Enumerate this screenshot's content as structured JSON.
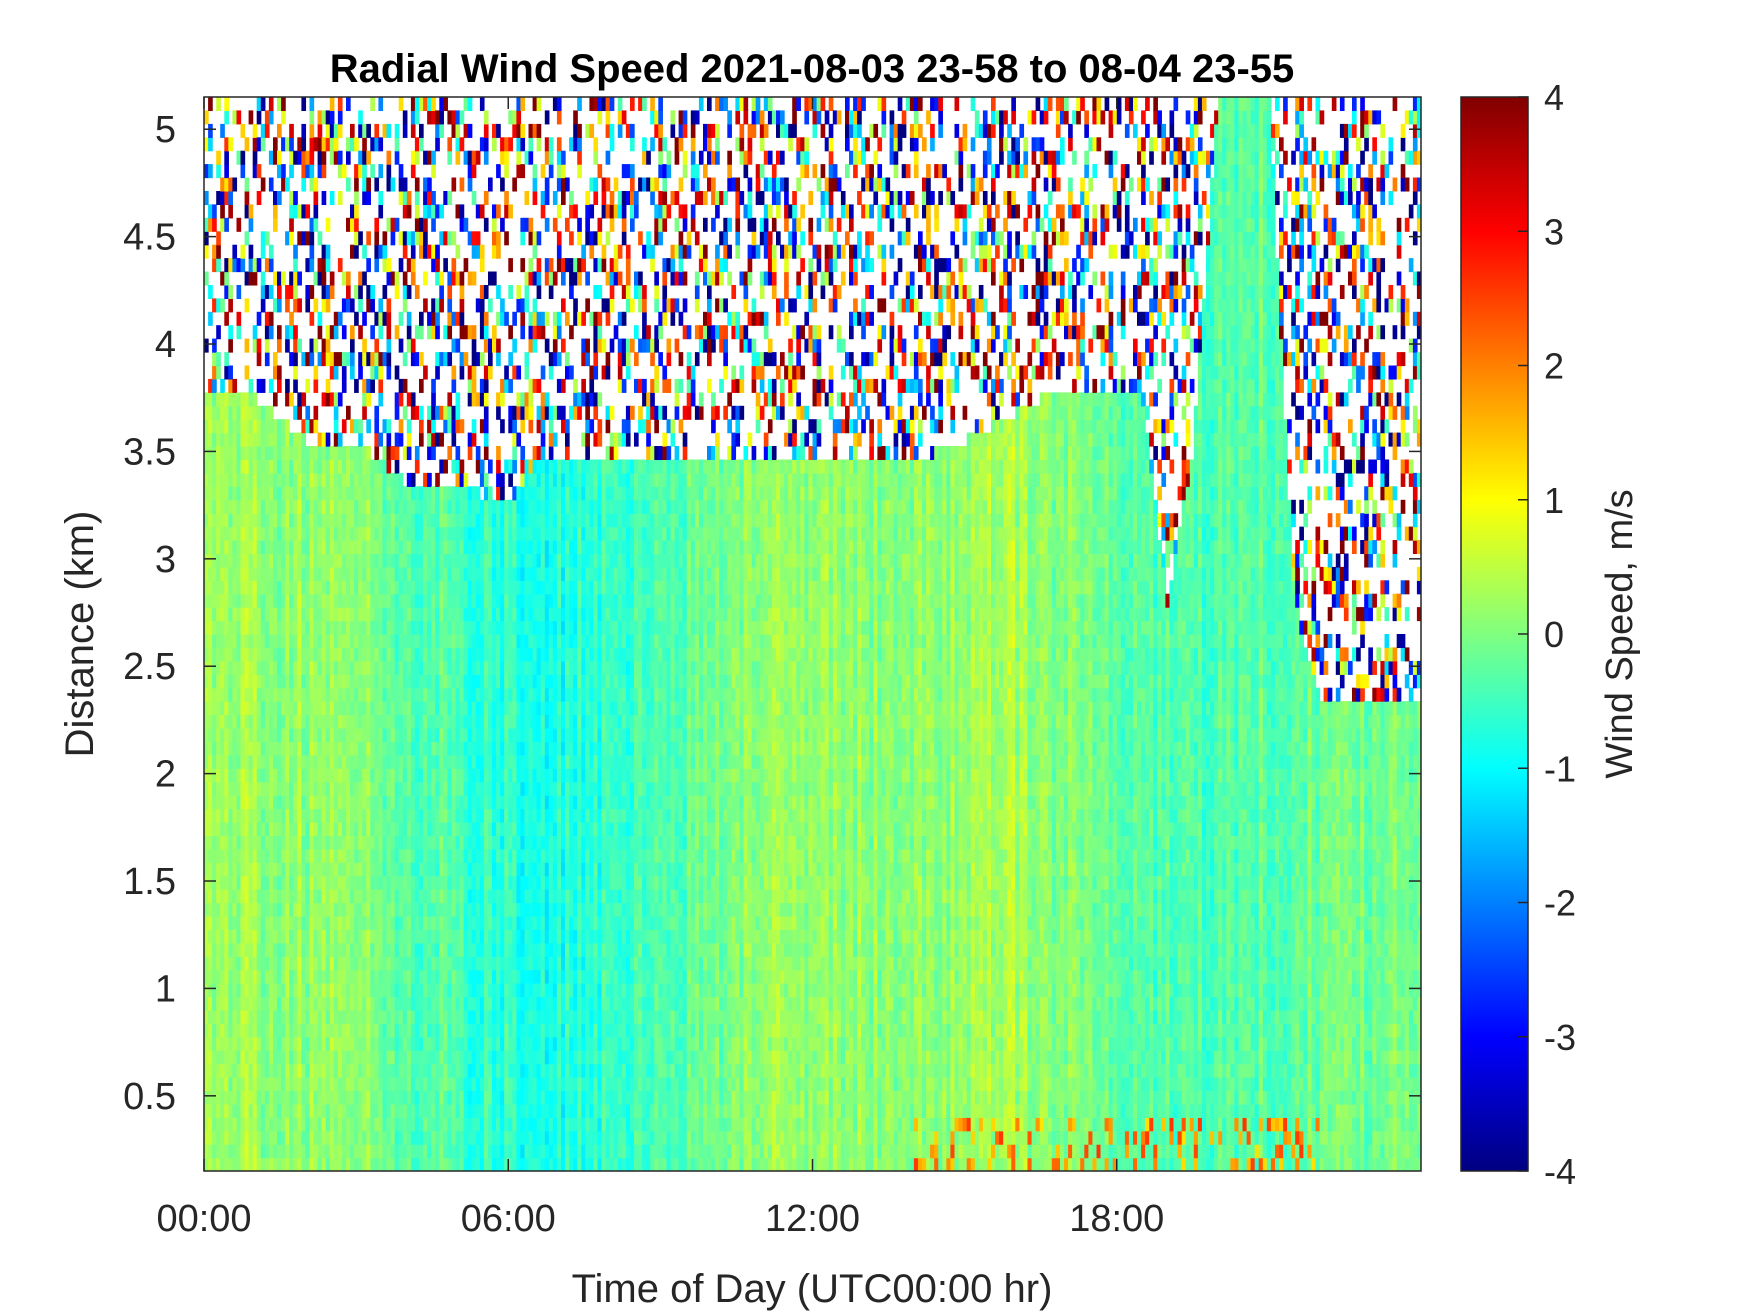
{
  "chart_data": {
    "type": "heatmap",
    "title": "Radial Wind Speed 2021-08-03 23-58 to 08-04 23-55",
    "xlabel": "Time of Day (UTC00:00 hr)",
    "ylabel": "Distance (km)",
    "colorbar_label": "Wind Speed, m/s",
    "colormap": "jet",
    "x_unit": "hours",
    "xlim": [
      0,
      24
    ],
    "ylim": [
      0.15,
      5.15
    ],
    "clim": [
      -4,
      4
    ],
    "x_ticks": [
      0,
      6,
      12,
      18
    ],
    "x_tick_labels": [
      "00:00",
      "06:00",
      "12:00",
      "18:00"
    ],
    "y_ticks": [
      0.5,
      1,
      1.5,
      2,
      2.5,
      3,
      3.5,
      4,
      4.5,
      5
    ],
    "y_tick_labels": [
      "0.5",
      "1",
      "1.5",
      "2",
      "2.5",
      "3",
      "3.5",
      "4",
      "4.5",
      "5"
    ],
    "c_ticks": [
      -4,
      -3,
      -2,
      -1,
      0,
      1,
      2,
      3,
      4
    ],
    "c_tick_labels": [
      "-4",
      "-3",
      "-2",
      "-1",
      "0",
      "1",
      "2",
      "3",
      "4"
    ],
    "valid_data_top_km": [
      {
        "t": 0.0,
        "top": 3.75
      },
      {
        "t": 1.0,
        "top": 3.75
      },
      {
        "t": 2.0,
        "top": 3.55
      },
      {
        "t": 3.0,
        "top": 3.55
      },
      {
        "t": 4.0,
        "top": 3.35
      },
      {
        "t": 5.0,
        "top": 3.35
      },
      {
        "t": 6.0,
        "top": 3.25
      },
      {
        "t": 6.5,
        "top": 3.45
      },
      {
        "t": 9.0,
        "top": 3.45
      },
      {
        "t": 12.0,
        "top": 3.45
      },
      {
        "t": 14.0,
        "top": 3.45
      },
      {
        "t": 15.0,
        "top": 3.55
      },
      {
        "t": 16.5,
        "top": 3.75
      },
      {
        "t": 18.5,
        "top": 3.75
      },
      {
        "t": 19.0,
        "top": 2.8
      },
      {
        "t": 19.5,
        "top": 3.5
      },
      {
        "t": 20.0,
        "top": 5.15
      },
      {
        "t": 21.0,
        "top": 5.15
      },
      {
        "t": 21.5,
        "top": 2.8
      },
      {
        "t": 22.0,
        "top": 2.35
      },
      {
        "t": 24.0,
        "top": 2.35
      }
    ],
    "mean_wind_by_time_ms": [
      {
        "t": 0,
        "v": 0.2
      },
      {
        "t": 3,
        "v": 0.1
      },
      {
        "t": 5,
        "v": -0.5
      },
      {
        "t": 7,
        "v": -0.8
      },
      {
        "t": 9,
        "v": -0.4
      },
      {
        "t": 11,
        "v": 0.2
      },
      {
        "t": 14,
        "v": 0.1
      },
      {
        "t": 16,
        "v": 0.3
      },
      {
        "t": 18,
        "v": -0.3
      },
      {
        "t": 20,
        "v": -0.4
      },
      {
        "t": 22,
        "v": -0.1
      },
      {
        "t": 24,
        "v": 0.0
      }
    ]
  }
}
